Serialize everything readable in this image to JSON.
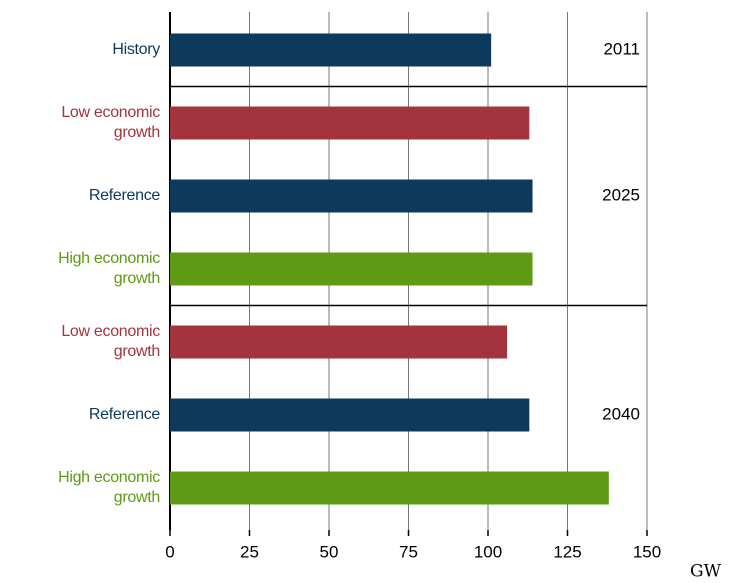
{
  "chart_data": {
    "type": "bar",
    "orientation": "horizontal",
    "categories": [
      "History",
      "Low economic\ngrowth",
      "Reference",
      "High economic\ngrowth",
      "Low economic\ngrowth",
      "Reference",
      "High economic\ngrowth"
    ],
    "values": [
      101,
      113,
      114,
      114,
      106,
      113,
      138
    ],
    "colors": [
      "#0d3a5c",
      "#a3343e",
      "#0d3a5c",
      "#5e9a14",
      "#a3343e",
      "#0d3a5c",
      "#5e9a14"
    ],
    "groups": [
      {
        "label": "2011",
        "size": 1
      },
      {
        "label": "2025",
        "size": 3
      },
      {
        "label": "2040",
        "size": 3
      }
    ],
    "xlim": [
      0,
      150
    ],
    "xticks": [
      0,
      25,
      50,
      75,
      100,
      125,
      150
    ],
    "x_label": "GW",
    "grid": true
  }
}
